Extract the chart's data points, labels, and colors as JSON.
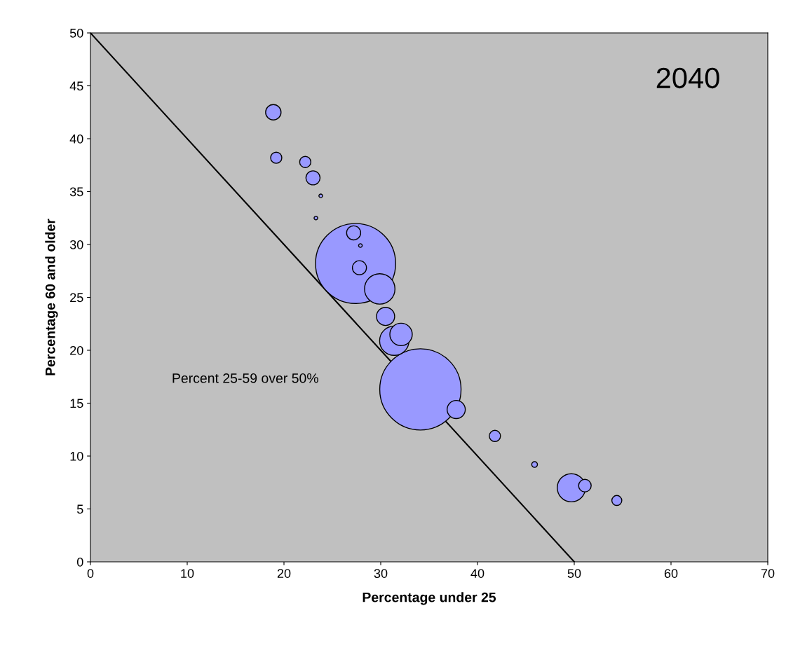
{
  "chart_data": {
    "type": "bubble",
    "title": "2040",
    "xlabel": "Percentage under 25",
    "ylabel": "Percentage 60 and older",
    "annotations": [
      "Percent 25-59 over 50%"
    ],
    "xlim": [
      0,
      70
    ],
    "xticks": [
      0,
      10,
      20,
      30,
      40,
      50,
      60,
      70
    ],
    "ylim": [
      0,
      50
    ],
    "yticks": [
      0,
      5,
      10,
      15,
      20,
      25,
      30,
      35,
      40,
      45,
      50
    ],
    "grid": false,
    "legend": false,
    "series": [
      {
        "type": "line",
        "color": "#000000",
        "x": [
          0,
          50
        ],
        "values": [
          50,
          0
        ]
      },
      {
        "color": "#9999ff",
        "x": [
          18.9,
          19.2,
          22.2,
          23.0,
          23.8,
          23.3,
          27.2,
          27.9,
          27.4,
          27.8,
          29.9,
          30.5,
          32.1,
          31.4,
          34.1,
          37.8,
          41.8,
          45.9,
          51.1,
          49.7,
          54.4
        ],
        "values": [
          42.5,
          38.2,
          37.8,
          36.3,
          34.6,
          32.5,
          31.1,
          29.9,
          28.2,
          27.8,
          25.8,
          23.2,
          21.5,
          20.9,
          16.3,
          14.4,
          11.9,
          9.2,
          7.2,
          7.0,
          5.8
        ],
        "sizes": [
          0.036,
          0.019,
          0.019,
          0.03,
          0.002,
          0.002,
          0.03,
          0.002,
          0.97,
          0.03,
          0.14,
          0.05,
          0.076,
          0.13,
          1,
          0.05,
          0.019,
          0.005,
          0.024,
          0.12,
          0.015
        ]
      }
    ]
  }
}
